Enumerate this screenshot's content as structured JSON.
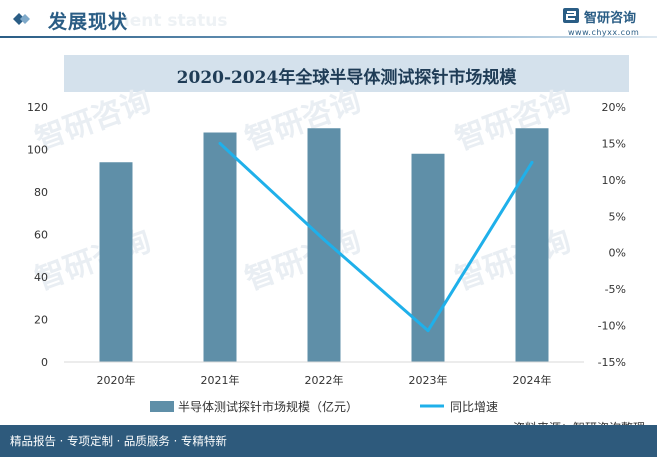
{
  "header": {
    "title": "发展现状",
    "ghost_text": "ment status",
    "brand_name": "智研咨询",
    "brand_url": "www.chyxx.com"
  },
  "watermark": "智研咨询",
  "footer": {
    "tagline": "精品报告 · 专项定制 · 品质服务 · 专精特新",
    "source": "资料来源：智研咨询整理"
  },
  "colors": {
    "bar": "#5f8fa8",
    "line": "#1fb0ea",
    "title_band": "#d4e1ec",
    "footer": "#2e5a7c"
  },
  "chart_data": {
    "type": "bar",
    "title": "2020-2024年全球半导体测试探针市场规模",
    "categories": [
      "2020年",
      "2021年",
      "2022年",
      "2023年",
      "2024年"
    ],
    "series": [
      {
        "name": "半导体测试探针市场规模（亿元）",
        "type": "bar",
        "axis": "left",
        "values": [
          94,
          108,
          110,
          98,
          110
        ]
      },
      {
        "name": "同比增速",
        "type": "line",
        "axis": "right",
        "values": [
          null,
          15.0,
          1.8,
          -10.7,
          12.4
        ]
      }
    ],
    "y_left": {
      "min": 0,
      "max": 120,
      "step": 20,
      "ticks": [
        "0",
        "20",
        "40",
        "60",
        "80",
        "100",
        "120"
      ]
    },
    "y_right": {
      "min": -15,
      "max": 20,
      "step": 5,
      "ticks": [
        "-15%",
        "-10%",
        "-5%",
        "0%",
        "5%",
        "10%",
        "15%",
        "20%"
      ]
    },
    "legend_position": "bottom",
    "grid": false
  }
}
